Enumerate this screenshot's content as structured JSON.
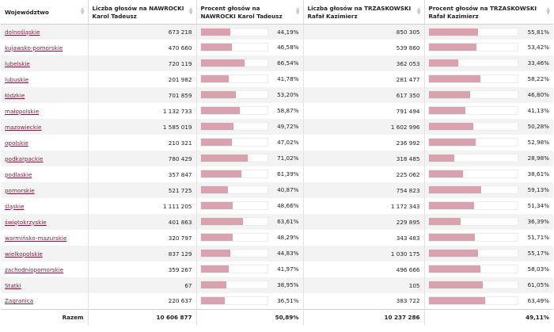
{
  "headers": [
    "Województwo",
    "Liczba głosów na NAWROCKI Karol Tadeusz",
    "Procent głosów na NAWROCKI Karol Tadeusz",
    "Liczba głosów na TRZASKOWSKI Rafał Kazimierz",
    "Procent głosów na TRZASKOWSKI Rafał Kazimierz"
  ],
  "colors": {
    "bar": "#d9a2ae",
    "link": "#7a1f3a",
    "stripe": "#f3f3f3"
  },
  "rows": [
    {
      "name": "dolnośląskie",
      "votes_n": "673 218",
      "pct_n": "44,19%",
      "pct_n_val": 44.19,
      "votes_t": "850 305",
      "pct_t": "55,81%",
      "pct_t_val": 55.81
    },
    {
      "name": "kujawsko-pomorskie",
      "votes_n": "470 660",
      "pct_n": "46,58%",
      "pct_n_val": 46.58,
      "votes_t": "539 860",
      "pct_t": "53,42%",
      "pct_t_val": 53.42
    },
    {
      "name": "lubelskie",
      "votes_n": "720 119",
      "pct_n": "66,54%",
      "pct_n_val": 66.54,
      "votes_t": "362 053",
      "pct_t": "33,46%",
      "pct_t_val": 33.46
    },
    {
      "name": "lubuskie",
      "votes_n": "201 982",
      "pct_n": "41,78%",
      "pct_n_val": 41.78,
      "votes_t": "281 477",
      "pct_t": "58,22%",
      "pct_t_val": 58.22
    },
    {
      "name": "łódzkie",
      "votes_n": "701 859",
      "pct_n": "53,20%",
      "pct_n_val": 53.2,
      "votes_t": "617 350",
      "pct_t": "46,80%",
      "pct_t_val": 46.8
    },
    {
      "name": "małopolskie",
      "votes_n": "1 132 733",
      "pct_n": "58,87%",
      "pct_n_val": 58.87,
      "votes_t": "791 494",
      "pct_t": "41,13%",
      "pct_t_val": 41.13
    },
    {
      "name": "mazowieckie",
      "votes_n": "1 585 019",
      "pct_n": "49,72%",
      "pct_n_val": 49.72,
      "votes_t": "1 602 996",
      "pct_t": "50,28%",
      "pct_t_val": 50.28
    },
    {
      "name": "opolskie",
      "votes_n": "210 321",
      "pct_n": "47,02%",
      "pct_n_val": 47.02,
      "votes_t": "236 992",
      "pct_t": "52,98%",
      "pct_t_val": 52.98
    },
    {
      "name": "podkarpackie",
      "votes_n": "780 429",
      "pct_n": "71,02%",
      "pct_n_val": 71.02,
      "votes_t": "318 485",
      "pct_t": "28,98%",
      "pct_t_val": 28.98
    },
    {
      "name": "podlaskie",
      "votes_n": "357 847",
      "pct_n": "61,39%",
      "pct_n_val": 61.39,
      "votes_t": "225 062",
      "pct_t": "38,61%",
      "pct_t_val": 38.61
    },
    {
      "name": "pomorskie",
      "votes_n": "521 725",
      "pct_n": "40,87%",
      "pct_n_val": 40.87,
      "votes_t": "754 823",
      "pct_t": "59,13%",
      "pct_t_val": 59.13
    },
    {
      "name": "śląskie",
      "votes_n": "1 111 205",
      "pct_n": "48,66%",
      "pct_n_val": 48.66,
      "votes_t": "1 172 343",
      "pct_t": "51,34%",
      "pct_t_val": 51.34
    },
    {
      "name": "świętokrzyskie",
      "votes_n": "401 863",
      "pct_n": "63,61%",
      "pct_n_val": 63.61,
      "votes_t": "229 895",
      "pct_t": "36,39%",
      "pct_t_val": 36.39
    },
    {
      "name": "warmińsko-mazurskie",
      "votes_n": "320 797",
      "pct_n": "48,29%",
      "pct_n_val": 48.29,
      "votes_t": "343 483",
      "pct_t": "51,71%",
      "pct_t_val": 51.71
    },
    {
      "name": "wielkopolskie",
      "votes_n": "837 129",
      "pct_n": "44,83%",
      "pct_n_val": 44.83,
      "votes_t": "1 030 175",
      "pct_t": "55,17%",
      "pct_t_val": 55.17
    },
    {
      "name": "zachodniopomorskie",
      "votes_n": "359 267",
      "pct_n": "41,97%",
      "pct_n_val": 41.97,
      "votes_t": "496 666",
      "pct_t": "58,03%",
      "pct_t_val": 58.03
    },
    {
      "name": "Statki",
      "votes_n": "67",
      "pct_n": "38,95%",
      "pct_n_val": 38.95,
      "votes_t": "105",
      "pct_t": "61,05%",
      "pct_t_val": 61.05
    },
    {
      "name": "Zagranica",
      "votes_n": "220 637",
      "pct_n": "36,51%",
      "pct_n_val": 36.51,
      "votes_t": "383 722",
      "pct_t": "63,49%",
      "pct_t_val": 63.49
    }
  ],
  "footer": {
    "label": "Razem",
    "votes_n": "10 606 877",
    "pct_n": "50,89%",
    "votes_t": "10 237 286",
    "pct_t": "49,11%"
  }
}
